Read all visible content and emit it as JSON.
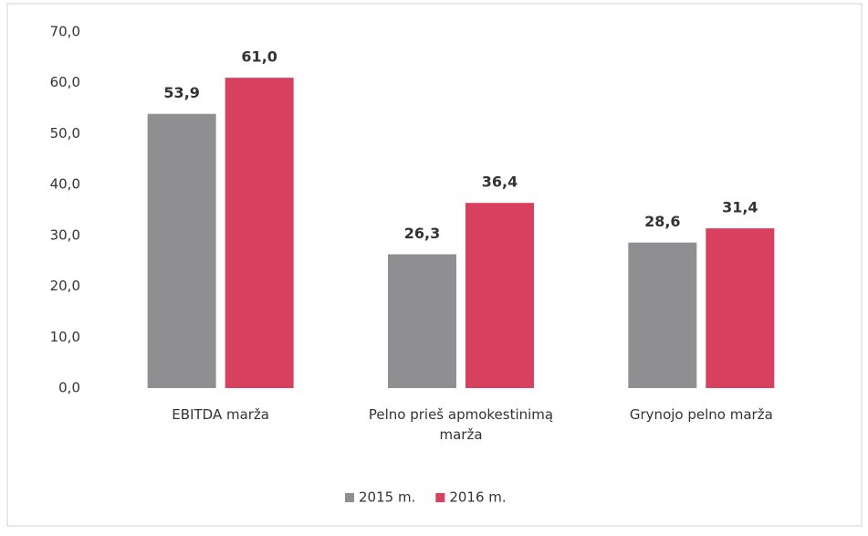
{
  "chart_data": {
    "type": "bar",
    "categories": [
      "EBITDA marža",
      "Pelno prieš apmokestinimą marža",
      "Grynojo pelno marža"
    ],
    "series": [
      {
        "name": "2015 m.",
        "color": "#8f8f91",
        "values": [
          53.9,
          26.3,
          28.6
        ],
        "value_labels": [
          "53,9",
          "26,3",
          "28,6"
        ]
      },
      {
        "name": "2016 m.",
        "color": "#d8405f",
        "values": [
          61.0,
          36.4,
          31.4
        ],
        "value_labels": [
          "61,0",
          "36,4",
          "31,4"
        ]
      }
    ],
    "ylim": [
      0,
      70
    ],
    "yticks": [
      {
        "value": 0,
        "label": "0,0"
      },
      {
        "value": 10,
        "label": "10,0"
      },
      {
        "value": 20,
        "label": "20,0"
      },
      {
        "value": 30,
        "label": "30,0"
      },
      {
        "value": 40,
        "label": "40,0"
      },
      {
        "value": 50,
        "label": "50,0"
      },
      {
        "value": 60,
        "label": "60,0"
      },
      {
        "value": 70,
        "label": "70,0"
      }
    ],
    "grid": false,
    "legend": "bottom"
  }
}
